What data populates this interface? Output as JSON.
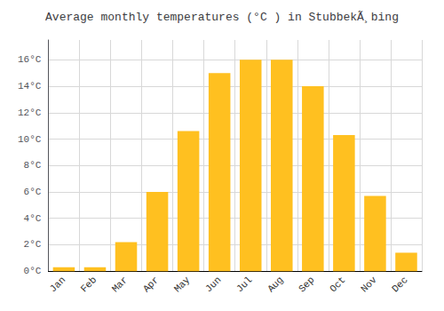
{
  "chart_data": {
    "type": "bar",
    "title": "Average monthly temperatures (°C ) in StubbekÃ¸bing",
    "categories": [
      "Jan",
      "Feb",
      "Mar",
      "Apr",
      "May",
      "Jun",
      "Jul",
      "Aug",
      "Sep",
      "Oct",
      "Nov",
      "Dec"
    ],
    "values": [
      0.3,
      0.3,
      2.2,
      6.0,
      10.6,
      15.0,
      16.0,
      16.0,
      14.0,
      10.3,
      5.7,
      1.4
    ],
    "color": "#FFC020",
    "ylim": [
      0,
      17.5
    ],
    "yticks": [
      {
        "value": 0,
        "label": "0°C"
      },
      {
        "value": 2,
        "label": "2°C"
      },
      {
        "value": 4,
        "label": "4°C"
      },
      {
        "value": 6,
        "label": "6°C"
      },
      {
        "value": 8,
        "label": "8°C"
      },
      {
        "value": 10,
        "label": "10°C"
      },
      {
        "value": 12,
        "label": "12°C"
      },
      {
        "value": 14,
        "label": "14°C"
      },
      {
        "value": 16,
        "label": "16°C"
      }
    ],
    "grid": true
  }
}
